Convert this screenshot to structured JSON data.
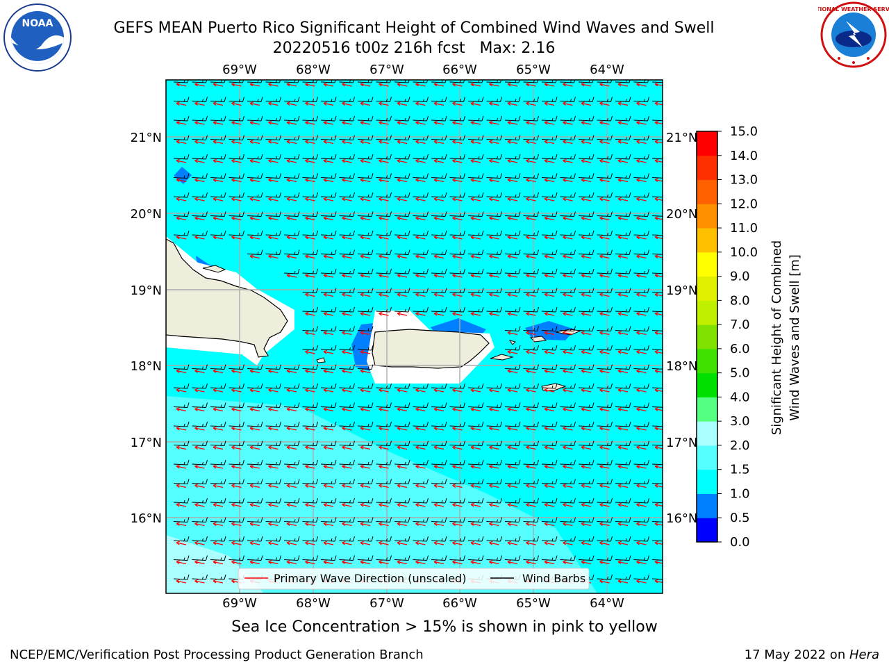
{
  "header": {
    "title_line1": "GEFS MEAN Puerto Rico Significant Height of Combined Wind Waves and Swell",
    "title_line2": "20220516 t00z 216h fcst   Max: 2.16"
  },
  "logos": {
    "left": "noaa-logo",
    "left_text": "NOAA",
    "right": "nws-logo",
    "right_text": "NATIONAL WEATHER SERVICE"
  },
  "map": {
    "lon_labels": [
      "69°W",
      "68°W",
      "67°W",
      "66°W",
      "65°W",
      "64°W"
    ],
    "lat_labels": [
      "21°N",
      "20°N",
      "19°N",
      "18°N",
      "17°N",
      "16°N"
    ],
    "legend": {
      "primary_wave": "Primary Wave Direction (unscaled)",
      "wind_barbs": "Wind Barbs"
    },
    "colors": {
      "ocean_main": "#00FFFF",
      "ocean_light": "#55FFFF",
      "ocean_lighter": "#AAFFFF",
      "land": "#EFEDDC",
      "deep_blue": "#0080FF",
      "arrow": "#FF0000"
    }
  },
  "colorbar": {
    "ticks": [
      "0.0",
      "0.5",
      "1.0",
      "1.5",
      "2.0",
      "3.0",
      "4.0",
      "5.0",
      "6.0",
      "7.0",
      "8.0",
      "9.0",
      "10.0",
      "11.0",
      "12.0",
      "13.0",
      "14.0",
      "15.0"
    ],
    "colors": [
      "#0000FF",
      "#0080FF",
      "#00FFFF",
      "#55FFFF",
      "#AAFFFF",
      "#55FF80",
      "#00E000",
      "#40E000",
      "#80E000",
      "#C0F000",
      "#E0F000",
      "#FFFF00",
      "#FFC000",
      "#FF9000",
      "#FF6000",
      "#FF3000",
      "#FF0000"
    ],
    "label_line1": "Significant Height of Combined",
    "label_line2": "Wind Waves and Swell [m]"
  },
  "footer": {
    "note": "Sea Ice Concentration > 15% is shown in pink to yellow",
    "credit": "NCEP/EMC/Verification Post Processing Product Generation Branch",
    "date": "17 May 2022 on ",
    "host": "Hera"
  }
}
